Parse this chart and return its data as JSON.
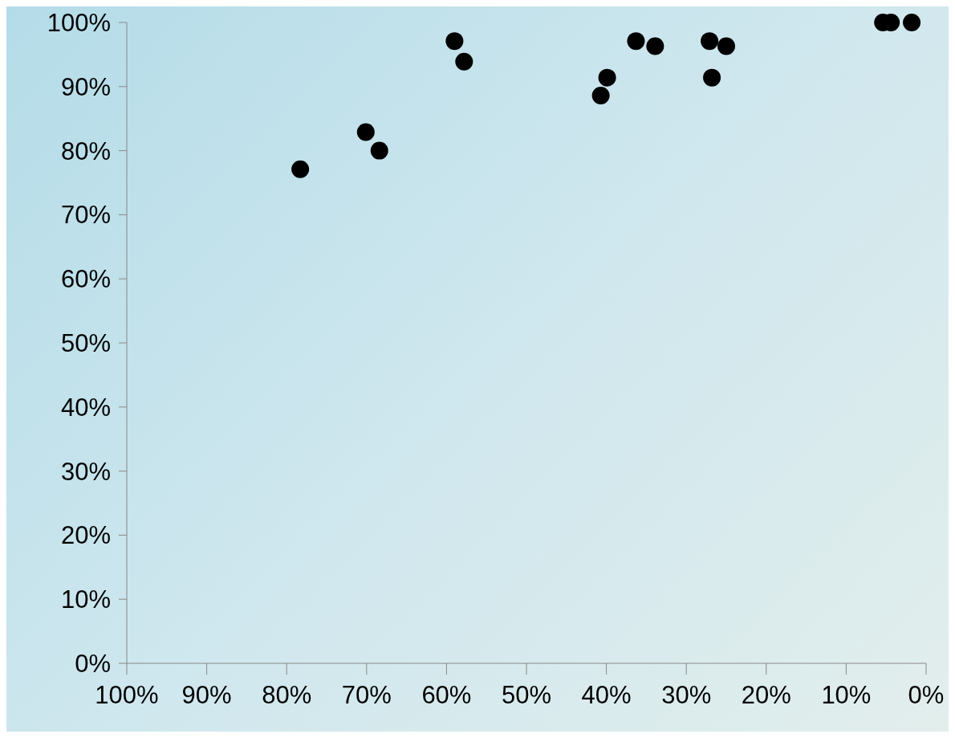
{
  "chart_data": {
    "type": "scatter",
    "x": [
      78.3,
      70.1,
      68.4,
      59.0,
      57.8,
      40.7,
      39.9,
      36.3,
      33.9,
      27.1,
      26.8,
      25.0,
      5.4,
      4.4,
      1.8
    ],
    "values": [
      77.1,
      82.9,
      80.0,
      97.1,
      93.9,
      88.6,
      91.4,
      97.1,
      96.3,
      97.1,
      91.4,
      96.3,
      100,
      100,
      100
    ],
    "color": "#000000",
    "marker": "circle",
    "xlim": [
      100,
      0
    ],
    "xticks": [
      {
        "value": 100,
        "label": "100%"
      },
      {
        "value": 90,
        "label": "90%"
      },
      {
        "value": 80,
        "label": "80%"
      },
      {
        "value": 70,
        "label": "70%"
      },
      {
        "value": 60,
        "label": "60%"
      },
      {
        "value": 50,
        "label": "50%"
      },
      {
        "value": 40,
        "label": "40%"
      },
      {
        "value": 30,
        "label": "30%"
      },
      {
        "value": 20,
        "label": "20%"
      },
      {
        "value": 10,
        "label": "10%"
      },
      {
        "value": 0,
        "label": "0%"
      }
    ],
    "ylim": [
      0,
      100
    ],
    "yticks": [
      {
        "value": 0,
        "label": "0%"
      },
      {
        "value": 10,
        "label": "10%"
      },
      {
        "value": 20,
        "label": "20%"
      },
      {
        "value": 30,
        "label": "30%"
      },
      {
        "value": 40,
        "label": "40%"
      },
      {
        "value": 50,
        "label": "50%"
      },
      {
        "value": 60,
        "label": "60%"
      },
      {
        "value": 70,
        "label": "70%"
      },
      {
        "value": 80,
        "label": "80%"
      },
      {
        "value": 90,
        "label": "90%"
      },
      {
        "value": 100,
        "label": "100%"
      }
    ],
    "grid": false,
    "legend": false
  }
}
